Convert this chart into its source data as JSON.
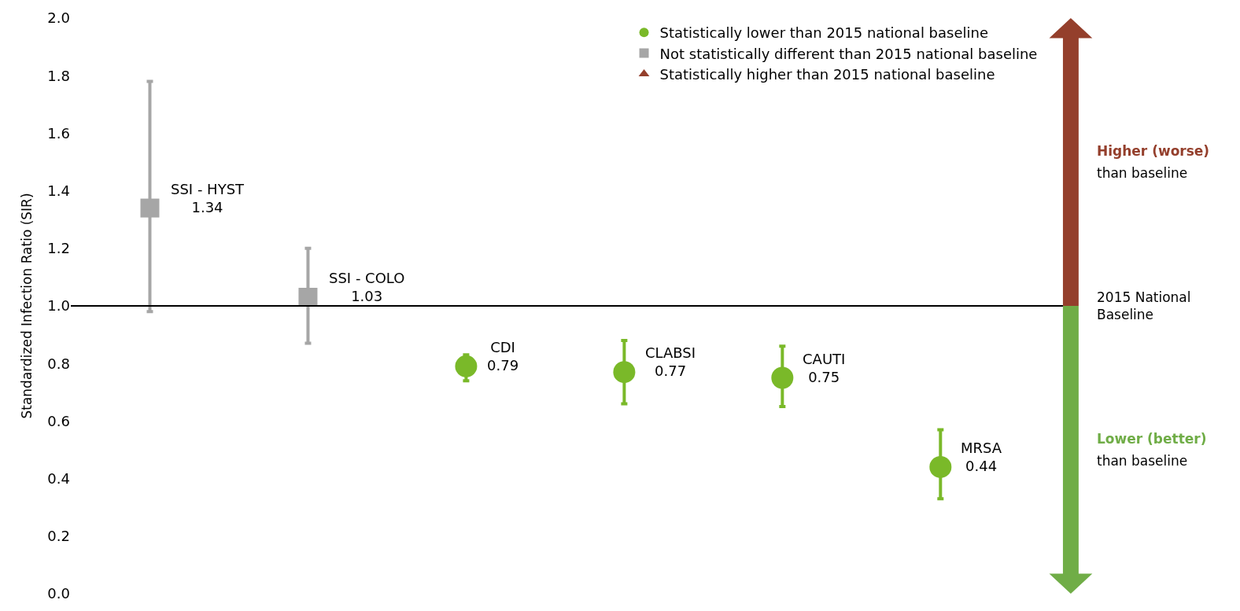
{
  "chart_data": {
    "type": "scatter",
    "ylabel": "Standardized Infection Ratio (SIR)",
    "categories": [
      null,
      null,
      null,
      null,
      null,
      null
    ],
    "series": [
      {
        "name": "Statistically lower than 2015 national baseline",
        "color": "#7ab929",
        "marker": "circle",
        "values": [
          null,
          null,
          0.79,
          0.77,
          0.75,
          0.44
        ],
        "errors": [
          null,
          null,
          [
            0.74,
            0.83
          ],
          [
            0.66,
            0.88
          ],
          [
            0.65,
            0.86
          ],
          [
            0.33,
            0.57
          ]
        ],
        "value_labels": [
          null,
          null,
          "CDI\n0.79",
          "CLABSI\n0.77",
          "CAUTI\n0.75",
          "MRSA\n0.44"
        ]
      },
      {
        "name": "Not statistically different than 2015 national baseline",
        "color": "#a6a6a6",
        "marker": "square",
        "values": [
          1.34,
          1.03,
          null,
          null,
          null,
          null
        ],
        "errors": [
          [
            0.98,
            1.78
          ],
          [
            0.87,
            1.2
          ],
          null,
          null,
          null,
          null
        ],
        "value_labels": [
          "SSI - HYST\n1.34",
          "SSI - COLO\n1.03",
          null,
          null,
          null,
          null
        ]
      },
      {
        "name": "Statistically higher than 2015 national baseline",
        "color": "#943f2c",
        "marker": "triangle",
        "values": [
          null,
          null,
          null,
          null,
          null,
          null
        ]
      }
    ],
    "ylim": [
      0,
      2.0
    ],
    "yticks": [
      {
        "value": 0,
        "label": "0.0"
      },
      0.2,
      0.4,
      0.6,
      0.8,
      {
        "value": 1,
        "label": "1.0"
      },
      1.2,
      1.4,
      1.6,
      1.8,
      {
        "value": 2,
        "label": "2.0"
      }
    ],
    "tick_labels": "y",
    "legend": "top right",
    "ref_lines": [
      {
        "axis": "y",
        "value": 1.0,
        "label": "2015 National Baseline",
        "color": "#000000"
      }
    ],
    "annotations": [
      "Higher (worse)",
      "than baseline",
      "Lower (better)",
      "than baseline"
    ]
  }
}
